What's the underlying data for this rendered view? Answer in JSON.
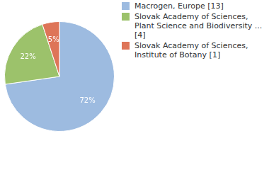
{
  "chart_data": {
    "type": "pie",
    "categories": [
      "Macrogen, Europe [13]",
      "Slovak Academy of Sciences, Plant Science and Biodiversity ... [4]",
      "Slovak Academy of Sciences, Institute of Botany [1]"
    ],
    "values": [
      72,
      22,
      5
    ],
    "value_labels": [
      "72%",
      "22%",
      "5%"
    ],
    "colors": [
      "#9dbbe0",
      "#9cc26b",
      "#de7558"
    ],
    "data_labels": true,
    "legend": "right"
  }
}
